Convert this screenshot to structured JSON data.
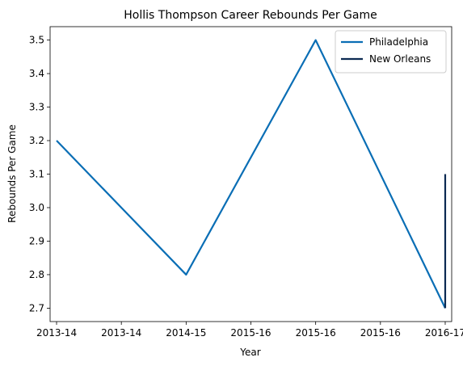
{
  "chart_data": {
    "type": "line",
    "title": "Hollis Thompson Career Rebounds Per Game",
    "xlabel": "Year",
    "ylabel": "Rebounds Per Game",
    "x_tick_labels": [
      "2013-14",
      "2013-14",
      "2014-15",
      "2015-16",
      "2015-16",
      "2015-16",
      "2016-17"
    ],
    "x_range": [
      -0.05,
      3.05
    ],
    "y_ticks": [
      "2.7",
      "2.8",
      "2.9",
      "3.0",
      "3.1",
      "3.2",
      "3.3",
      "3.4",
      "3.5"
    ],
    "ylim": [
      2.66,
      3.54
    ],
    "grid": false,
    "legend_position": "top-right",
    "series": [
      {
        "name": "Philadelphia",
        "color": "#0a6eb5",
        "points": [
          {
            "x": 0,
            "y": 3.2
          },
          {
            "x": 1,
            "y": 2.8
          },
          {
            "x": 2,
            "y": 3.5
          },
          {
            "x": 3,
            "y": 2.7
          }
        ]
      },
      {
        "name": "New Orleans",
        "color": "#0c2a52",
        "points": [
          {
            "x": 3,
            "y": 2.7
          },
          {
            "x": 3,
            "y": 3.1
          }
        ]
      }
    ]
  }
}
